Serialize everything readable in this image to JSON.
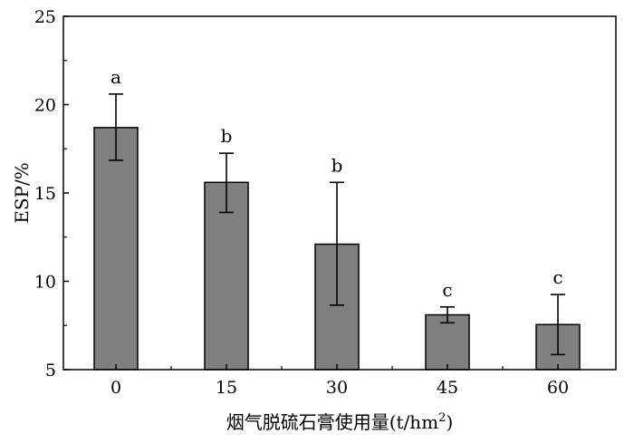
{
  "chart_data": {
    "type": "bar",
    "categories": [
      "0",
      "15",
      "30",
      "45",
      "60"
    ],
    "values": [
      18.7,
      15.6,
      12.1,
      8.1,
      7.55
    ],
    "error_low": [
      16.85,
      13.9,
      8.65,
      7.65,
      5.85
    ],
    "error_high": [
      20.6,
      17.25,
      15.6,
      8.55,
      9.25
    ],
    "significance_letters": [
      "a",
      "b",
      "b",
      "c",
      "c"
    ],
    "xlabel": "烟气脱硫石膏使用量(t/hm",
    "xlabel_superscript": "2",
    "xlabel_suffix": ")",
    "ylabel": "ESP/%",
    "ylim": [
      5,
      25
    ],
    "yticks": [
      "5",
      "10",
      "15",
      "20",
      "25"
    ],
    "grid": false,
    "bar_color": "#808080",
    "edge_color": "#000000"
  }
}
